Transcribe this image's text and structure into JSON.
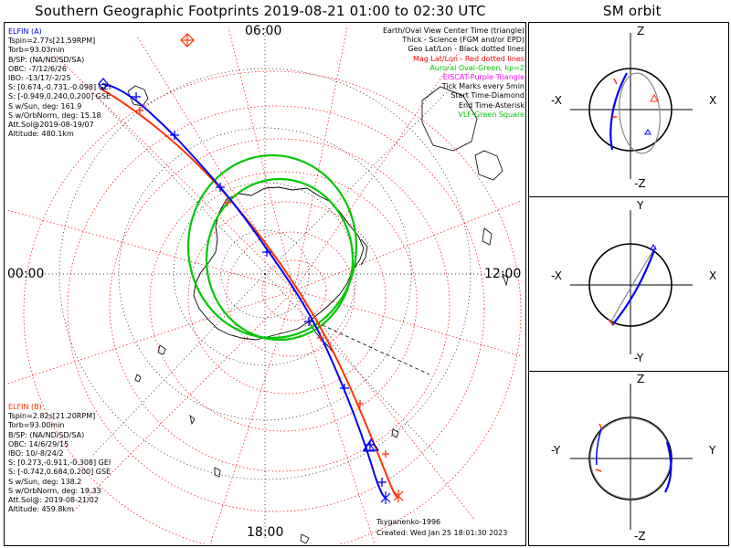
{
  "title": "Southern Geographic Footprints 2019-08-21 01:00 to 02:30 UTC",
  "side_title": "SM orbit",
  "clock_labels": {
    "top": "06:00",
    "bottom": "18:00",
    "left": "00:00",
    "right": "12:00"
  },
  "legend": [
    {
      "text": "Earth/Oval View Center Time (triangle)",
      "color": "#000000"
    },
    {
      "text": "Thick - Science (FGM and/or EPD)",
      "color": "#000000"
    },
    {
      "text": "Geo Lat/Lon - Black dotted lines",
      "color": "#000000"
    },
    {
      "text": "Mag Lat/Lon - Red dotted lines",
      "color": "#ff0000"
    },
    {
      "text": "Auroral Oval-Green, kp=2",
      "color": "#00c800"
    },
    {
      "text": "EISCAT-Purple Triangle",
      "color": "#ff00ff"
    },
    {
      "text": "Tick Marks every 5min",
      "color": "#000000"
    },
    {
      "text": "Start Time-Diamond",
      "color": "#000000"
    },
    {
      "text": "End Time-Asterisk",
      "color": "#000000"
    },
    {
      "text": "VLF-Green Square",
      "color": "#00c800"
    }
  ],
  "elfin_a": {
    "name": "ELFIN (A)",
    "color": "#0000ff",
    "lines": [
      "Tspin=2.77s[21.59RPM]",
      "Torb=93.03min",
      "B/SP: (NA/ND/SD/SA)",
      "OBC: -7/12/6/26",
      "IBO: -13/17/-2/25",
      "S: [0.674,-0.731,-0.098] GEI",
      "S: [-0.949,0.240,0.200] GSE",
      "S w/Sun, deg: 161.9",
      "S w/OrbNorm, deg: 15.18",
      "Att.Sol@2019-08-19/07",
      "Altitude: 480.1km"
    ]
  },
  "elfin_b": {
    "name": "ELFIN (B)",
    "color": "#ff3200",
    "lines": [
      "Tspin=2.82s[21.20RPM]",
      "Torb=93.00min",
      "B/SP: (NA/ND/SD/SA)",
      "OBC: 14/6/29/15",
      "IBO: 10/-8/24/2",
      "S: [0.273,-0.911,-0.308] GEI",
      "S: [-0.742,0.684,0.200] GSE",
      "S w/Sun, deg: 138.2",
      "S w/OrbNorm, deg: 19.33",
      "Att.Sol@: 2019-08-21/02",
      "Altitude: 459.8km"
    ]
  },
  "credits": {
    "model": "Tsyganenko-1996",
    "created": "Created: Wed Jan 25 18:01:30 2023"
  },
  "orbit_panels": [
    {
      "top": "Z",
      "bottom": "-Z",
      "left": "-X",
      "right": "X"
    },
    {
      "top": "Y",
      "bottom": "-Y",
      "left": "-X",
      "right": "X"
    },
    {
      "top": "Z",
      "bottom": "-Z",
      "left": "-Y",
      "right": "Y"
    }
  ],
  "colors": {
    "a": "#0000ff",
    "b": "#ff3200",
    "oval": "#00c800",
    "grid_mag": "#ff0000",
    "grid_geo": "#000000"
  }
}
